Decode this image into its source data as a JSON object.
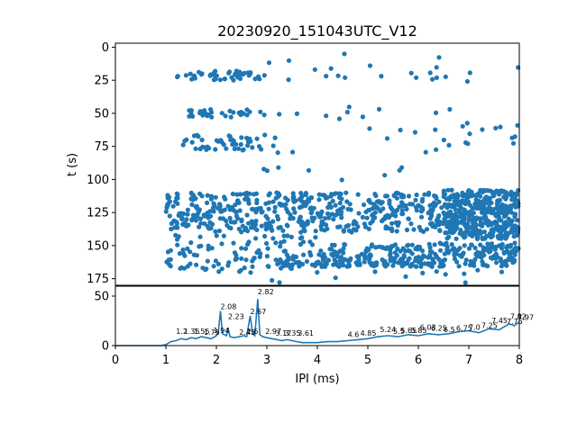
{
  "title": "20230920_151043UTC_V12",
  "colors": {
    "series": "#1f77b4",
    "axis": "#000000",
    "background": "#ffffff"
  },
  "chart_data": [
    {
      "type": "scatter",
      "name": "raster",
      "ylabel": "t (s)",
      "xlim": [
        0,
        8
      ],
      "ylim": [
        180,
        -3
      ],
      "y_inverted": true,
      "yticks": [
        0,
        25,
        50,
        75,
        100,
        125,
        150,
        175
      ],
      "clusters": [
        {
          "x_range": [
            1.2,
            3.0
          ],
          "t_range": [
            18,
            25
          ],
          "count": 45
        },
        {
          "x_range": [
            3.0,
            8.0
          ],
          "t_range": [
            5,
            26
          ],
          "count": 22
        },
        {
          "x_range": [
            1.3,
            3.0
          ],
          "t_range": [
            47,
            53
          ],
          "count": 30
        },
        {
          "x_range": [
            1.3,
            3.0
          ],
          "t_range": [
            66,
            78
          ],
          "count": 45
        },
        {
          "x_range": [
            3.0,
            8.0
          ],
          "t_range": [
            45,
            80
          ],
          "count": 35
        },
        {
          "x_range": [
            2.5,
            7.3
          ],
          "t_range": [
            90,
            102
          ],
          "count": 8
        },
        {
          "x_range": [
            1.0,
            4.0
          ],
          "t_range": [
            110,
            140
          ],
          "count": 260
        },
        {
          "x_range": [
            4.0,
            6.5
          ],
          "t_range": [
            110,
            140
          ],
          "count": 220
        },
        {
          "x_range": [
            6.5,
            8.0
          ],
          "t_range": [
            108,
            145
          ],
          "count": 420
        },
        {
          "x_range": [
            1.0,
            4.0
          ],
          "t_range": [
            142,
            158
          ],
          "count": 60
        },
        {
          "x_range": [
            4.0,
            8.0
          ],
          "t_range": [
            148,
            160
          ],
          "count": 180
        },
        {
          "x_range": [
            1.0,
            3.6
          ],
          "t_range": [
            158,
            168
          ],
          "count": 45
        },
        {
          "x_range": [
            3.2,
            8.0
          ],
          "t_range": [
            160,
            166
          ],
          "count": 160
        },
        {
          "x_range": [
            1.4,
            7.8
          ],
          "t_range": [
            168,
            178
          ],
          "count": 18
        }
      ]
    },
    {
      "type": "line",
      "name": "ipi-histogram",
      "xlabel": "IPI (ms)",
      "xlim": [
        0,
        8
      ],
      "ylim": [
        0,
        60
      ],
      "xticks": [
        0,
        1,
        2,
        3,
        4,
        5,
        6,
        7,
        8
      ],
      "yticks": [
        0,
        50
      ],
      "x": [
        0,
        0.5,
        0.9,
        1.0,
        1.1,
        1.2,
        1.3,
        1.4,
        1.5,
        1.6,
        1.7,
        1.8,
        1.9,
        2.0,
        2.04,
        2.08,
        2.12,
        2.2,
        2.23,
        2.27,
        2.35,
        2.45,
        2.55,
        2.6,
        2.67,
        2.72,
        2.76,
        2.82,
        2.86,
        2.92,
        3.0,
        3.1,
        3.2,
        3.3,
        3.4,
        3.5,
        3.6,
        3.7,
        3.8,
        3.9,
        4.0,
        4.2,
        4.4,
        4.6,
        4.8,
        5.0,
        5.2,
        5.4,
        5.6,
        5.8,
        6.0,
        6.2,
        6.4,
        6.6,
        6.8,
        7.0,
        7.2,
        7.4,
        7.6,
        7.8,
        7.9,
        8.0
      ],
      "y": [
        0,
        0,
        0,
        1,
        4,
        5,
        7,
        6,
        8,
        7,
        9,
        8,
        7,
        10,
        14,
        35,
        12,
        10,
        18,
        9,
        8,
        9,
        10,
        9,
        30,
        12,
        10,
        47,
        11,
        9,
        8,
        7,
        6,
        5,
        6,
        5,
        4,
        3,
        3,
        3,
        3,
        4,
        4,
        5,
        6,
        7,
        9,
        10,
        9,
        11,
        10,
        12,
        11,
        12,
        14,
        15,
        13,
        17,
        16,
        22,
        20,
        24
      ],
      "peaks": [
        {
          "x": 1.2,
          "y": 10,
          "label": "1.2"
        },
        {
          "x": 1.35,
          "y": 10,
          "label": "1.35"
        },
        {
          "x": 1.55,
          "y": 10,
          "label": "1.55"
        },
        {
          "x": 1.75,
          "y": 9,
          "label": "1.75"
        },
        {
          "x": 1.94,
          "y": 11,
          "label": "1.94"
        },
        {
          "x": 2.08,
          "y": 35,
          "label": "2.08"
        },
        {
          "x": 2.23,
          "y": 25,
          "label": "2.23"
        },
        {
          "x": 2.45,
          "y": 9,
          "label": "2.45"
        },
        {
          "x": 2.6,
          "y": 10,
          "label": "2.6"
        },
        {
          "x": 2.67,
          "y": 30,
          "label": "2.67"
        },
        {
          "x": 2.82,
          "y": 50,
          "label": "2.82"
        },
        {
          "x": 2.97,
          "y": 10,
          "label": "2.97"
        },
        {
          "x": 3.17,
          "y": 8,
          "label": "3.17"
        },
        {
          "x": 3.35,
          "y": 8,
          "label": "3.35"
        },
        {
          "x": 3.61,
          "y": 8,
          "label": "3.61"
        },
        {
          "x": 4.6,
          "y": 7,
          "label": "4.6"
        },
        {
          "x": 4.85,
          "y": 8,
          "label": "4.85"
        },
        {
          "x": 5.24,
          "y": 12,
          "label": "5.24"
        },
        {
          "x": 5.5,
          "y": 10,
          "label": "5.5"
        },
        {
          "x": 5.65,
          "y": 11,
          "label": "5.65"
        },
        {
          "x": 5.85,
          "y": 11,
          "label": "5.85"
        },
        {
          "x": 6.03,
          "y": 14,
          "label": "6.03"
        },
        {
          "x": 6.25,
          "y": 13,
          "label": "6.25"
        },
        {
          "x": 6.5,
          "y": 12,
          "label": "6.5"
        },
        {
          "x": 6.75,
          "y": 13,
          "label": "6.75"
        },
        {
          "x": 7.0,
          "y": 14,
          "label": "7.0"
        },
        {
          "x": 7.25,
          "y": 16,
          "label": "7.25"
        },
        {
          "x": 7.45,
          "y": 21,
          "label": "7.45"
        },
        {
          "x": 7.75,
          "y": 20,
          "label": "7.75"
        },
        {
          "x": 7.82,
          "y": 25,
          "label": "7.82"
        },
        {
          "x": 7.97,
          "y": 24,
          "label": "7.97"
        }
      ]
    }
  ]
}
